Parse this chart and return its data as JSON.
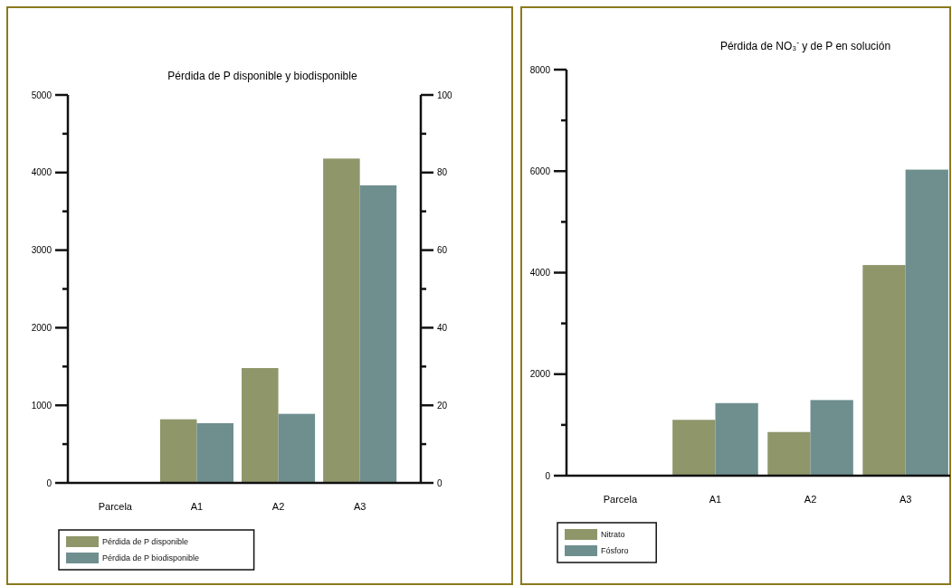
{
  "chart_data": [
    {
      "type": "bar",
      "title": "Pérdida de P disponible y biodisponible",
      "categories": [
        "Parcela",
        "A1",
        "A2",
        "A3"
      ],
      "series": [
        {
          "name": "Pérdida de P disponible",
          "color": "#8f966a",
          "values": [
            null,
            820,
            1480,
            4180
          ]
        },
        {
          "name": "Pérdida de P biodisponible",
          "color": "#6f8f8f",
          "values": [
            null,
            15.4,
            17.8,
            76.7
          ],
          "axis": "y2"
        }
      ],
      "ylim": [
        0,
        5000
      ],
      "yticks": [
        0,
        {
          "value": 500,
          "label": null
        },
        1000,
        {
          "value": 1500,
          "label": null
        },
        2000,
        {
          "value": 2500,
          "label": null
        },
        3000,
        {
          "value": 3500,
          "label": null
        },
        4000,
        {
          "value": 4500,
          "label": null
        },
        5000
      ],
      "y2lim": [
        0,
        100
      ],
      "y2ticks": [
        0,
        {
          "value": 10,
          "label": null
        },
        20,
        {
          "value": 30,
          "label": null
        },
        40,
        {
          "value": 50,
          "label": null
        },
        60,
        {
          "value": 70,
          "label": null
        },
        80,
        {
          "value": 90,
          "label": null
        },
        100
      ],
      "grid": false,
      "legend": "bottom left"
    },
    {
      "type": "bar",
      "title": "Pérdida de NO₃$^{-}$ y de P en solución",
      "categories": [
        "Parcela",
        "A1",
        "A2",
        "A3"
      ],
      "series": [
        {
          "name": "Nitrato",
          "color": "#8f966a",
          "values": [
            null,
            1100,
            860,
            4150
          ]
        },
        {
          "name": "Fósforo",
          "color": "#6f8f8f",
          "values": [
            null,
            1430,
            1490,
            6030
          ]
        }
      ],
      "ylim": [
        0,
        8000
      ],
      "yticks": [
        0,
        {
          "value": 1000,
          "label": null
        },
        2000,
        {
          "value": 3000,
          "label": null
        },
        4000,
        {
          "value": 5000,
          "label": null
        },
        6000,
        {
          "value": 7000,
          "label": null
        },
        8000
      ],
      "grid": false,
      "legend": "bottom left"
    }
  ]
}
